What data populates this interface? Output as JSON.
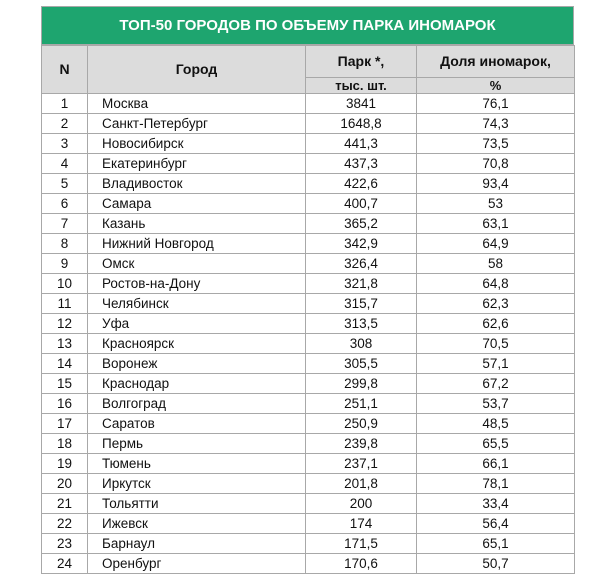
{
  "title": "ТОП-50 ГОРОДОВ ПО ОБЪЕМУ ПАРКА ИНОМАРОК",
  "headers": {
    "n": "N",
    "city": "Город",
    "park_line1": "Парк *,",
    "park_line2": "тыс. шт.",
    "share_line1": "Доля иномарок,",
    "share_line2": "%"
  },
  "rows": [
    {
      "n": "1",
      "city": "Москва",
      "park": "3841",
      "share": "76,1"
    },
    {
      "n": "2",
      "city": "Санкт-Петербург",
      "park": "1648,8",
      "share": "74,3"
    },
    {
      "n": "3",
      "city": "Новосибирск",
      "park": "441,3",
      "share": "73,5"
    },
    {
      "n": "4",
      "city": "Екатеринбург",
      "park": "437,3",
      "share": "70,8"
    },
    {
      "n": "5",
      "city": "Владивосток",
      "park": "422,6",
      "share": "93,4"
    },
    {
      "n": "6",
      "city": "Самара",
      "park": "400,7",
      "share": "53"
    },
    {
      "n": "7",
      "city": "Казань",
      "park": "365,2",
      "share": "63,1"
    },
    {
      "n": "8",
      "city": "Нижний Новгород",
      "park": "342,9",
      "share": "64,9"
    },
    {
      "n": "9",
      "city": "Омск",
      "park": "326,4",
      "share": "58"
    },
    {
      "n": "10",
      "city": "Ростов-на-Дону",
      "park": "321,8",
      "share": "64,8"
    },
    {
      "n": "11",
      "city": "Челябинск",
      "park": "315,7",
      "share": "62,3"
    },
    {
      "n": "12",
      "city": "Уфа",
      "park": "313,5",
      "share": "62,6"
    },
    {
      "n": "13",
      "city": "Красноярск",
      "park": "308",
      "share": "70,5"
    },
    {
      "n": "14",
      "city": "Воронеж",
      "park": "305,5",
      "share": "57,1"
    },
    {
      "n": "15",
      "city": "Краснодар",
      "park": "299,8",
      "share": "67,2"
    },
    {
      "n": "16",
      "city": "Волгоград",
      "park": "251,1",
      "share": "53,7"
    },
    {
      "n": "17",
      "city": "Саратов",
      "park": "250,9",
      "share": "48,5"
    },
    {
      "n": "18",
      "city": "Пермь",
      "park": "239,8",
      "share": "65,5"
    },
    {
      "n": "19",
      "city": "Тюмень",
      "park": "237,1",
      "share": "66,1"
    },
    {
      "n": "20",
      "city": "Иркутск",
      "park": "201,8",
      "share": "78,1"
    },
    {
      "n": "21",
      "city": "Тольятти",
      "park": "200",
      "share": "33,4"
    },
    {
      "n": "22",
      "city": "Ижевск",
      "park": "174",
      "share": "56,4"
    },
    {
      "n": "23",
      "city": "Барнаул",
      "park": "171,5",
      "share": "65,1"
    },
    {
      "n": "24",
      "city": "Оренбург",
      "park": "170,6",
      "share": "50,7"
    }
  ],
  "colors": {
    "title_bg": "#1ea56f",
    "header_bg": "#dcdcdc",
    "border": "#a8a8a8"
  }
}
